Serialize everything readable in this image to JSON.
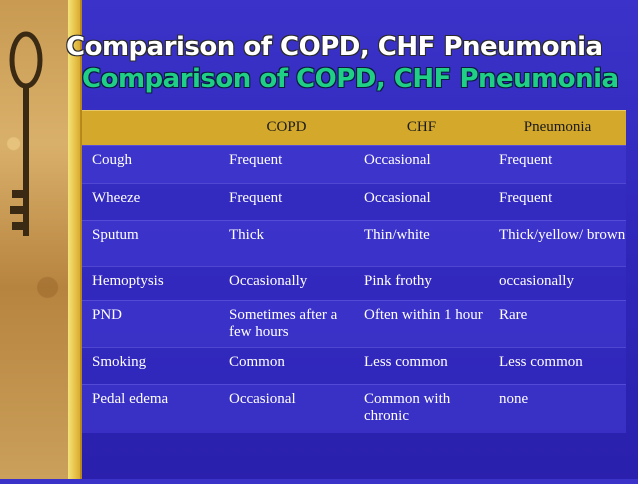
{
  "slide": {
    "title": "Comparison of COPD, CHF Pneumonia",
    "subtitle": "Comparison of COPD, CHF Pneumonia"
  },
  "table": {
    "headers": [
      "",
      "COPD",
      "CHF",
      "Pneumonia"
    ],
    "rows": [
      [
        "Cough",
        "Frequent",
        "Occasional",
        "Frequent"
      ],
      [
        "Wheeze",
        "Frequent",
        "Occasional",
        "Frequent"
      ],
      [
        "Sputum",
        "Thick",
        "Thin/white",
        "Thick/yellow/ brown"
      ],
      [
        "Hemoptysis",
        "Occasionally",
        "Pink frothy",
        "occasionally"
      ],
      [
        "PND",
        "Sometimes after a few hours",
        "Often within 1 hour",
        "Rare"
      ],
      [
        "Smoking",
        "Common",
        "Less common",
        "Less common"
      ],
      [
        "Pedal edema",
        "Occasional",
        "Common with chronic",
        "none"
      ]
    ]
  },
  "colors": {
    "background": "#3b33c9",
    "header_row": "#d4a82b",
    "subtitle": "#1fcf86"
  },
  "decor": {
    "left_image_icon": "antique-key-icon"
  }
}
